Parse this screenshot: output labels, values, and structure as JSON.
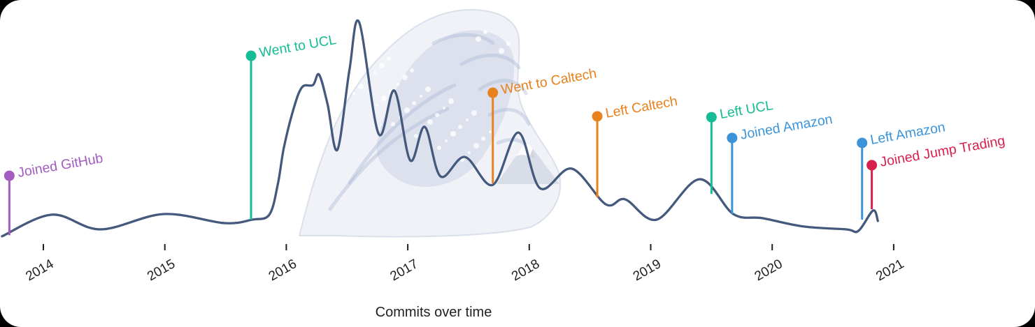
{
  "panel": {
    "background_color": "#ffffff",
    "outside_color": "#000000"
  },
  "chart_data": {
    "type": "line",
    "title": "Commits over time",
    "xlabel": "Commits over time",
    "x_tick_labels": [
      "2014",
      "2015",
      "2016",
      "2017",
      "2018",
      "2019",
      "2020",
      "2021"
    ],
    "x_range_years": [
      2013.65,
      2021.4
    ],
    "y_axis": "hidden; values are relative commit activity on a 0-100 scale",
    "grid": "off",
    "legend": "none",
    "background_art": "great-wave-off-kanagawa-watermark",
    "line_color": "#44597c",
    "axis_text_color": "#1f1f1f",
    "series": [
      {
        "name": "commits",
        "color": "#44597c",
        "points": [
          [
            2013.66,
            1.0
          ],
          [
            2014.07,
            11.0
          ],
          [
            2014.47,
            4.2
          ],
          [
            2014.99,
            11.3
          ],
          [
            2015.49,
            7.1
          ],
          [
            2015.72,
            8.7
          ],
          [
            2015.86,
            11.0
          ],
          [
            2015.93,
            25.0
          ],
          [
            2015.98,
            42.0
          ],
          [
            2016.06,
            60.0
          ],
          [
            2016.13,
            70.0
          ],
          [
            2016.22,
            71.0
          ],
          [
            2016.27,
            75.8
          ],
          [
            2016.34,
            62.0
          ],
          [
            2016.42,
            41.0
          ],
          [
            2016.52,
            78.0
          ],
          [
            2016.6,
            100.0
          ],
          [
            2016.76,
            48.4
          ],
          [
            2016.89,
            68.4
          ],
          [
            2017.02,
            36.1
          ],
          [
            2017.14,
            51.6
          ],
          [
            2017.27,
            28.7
          ],
          [
            2017.47,
            37.7
          ],
          [
            2017.7,
            24.8
          ],
          [
            2017.91,
            49.0
          ],
          [
            2018.09,
            23.2
          ],
          [
            2018.35,
            32.3
          ],
          [
            2018.63,
            15.8
          ],
          [
            2018.79,
            18.1
          ],
          [
            2019.05,
            8.7
          ],
          [
            2019.4,
            27.4
          ],
          [
            2019.68,
            11.3
          ],
          [
            2019.92,
            9.4
          ],
          [
            2020.26,
            5.5
          ],
          [
            2020.61,
            4.2
          ],
          [
            2020.71,
            3.5
          ],
          [
            2020.83,
            12.9
          ],
          [
            2020.87,
            8.1
          ]
        ]
      }
    ],
    "events": [
      {
        "label": "Joined GitHub",
        "color": "#a35cbf",
        "year": 2013.72,
        "marker_value": 29.0,
        "curve_value": 1.5
      },
      {
        "label": "Went to UCL",
        "color": "#16bc93",
        "year": 2015.71,
        "marker_value": 84.5,
        "curve_value": 8.7
      },
      {
        "label": "Went to Caltech",
        "color": "#e8821e",
        "year": 2017.7,
        "marker_value": 67.4,
        "curve_value": 25.5
      },
      {
        "label": "Left Caltech",
        "color": "#e8821e",
        "year": 2018.56,
        "marker_value": 56.5,
        "curve_value": 19.0
      },
      {
        "label": "Left UCL",
        "color": "#16bc93",
        "year": 2019.5,
        "marker_value": 56.1,
        "curve_value": 20.6
      },
      {
        "label": "Joined Amazon",
        "color": "#3b94d9",
        "year": 2019.67,
        "marker_value": 46.5,
        "curve_value": 11.3
      },
      {
        "label": "Left Amazon",
        "color": "#3b94d9",
        "year": 2020.74,
        "marker_value": 44.2,
        "curve_value": 8.7
      },
      {
        "label": "Joined Jump Trading",
        "color": "#d8204e",
        "year": 2020.82,
        "marker_value": 33.9,
        "curve_value": 13.5
      }
    ]
  }
}
